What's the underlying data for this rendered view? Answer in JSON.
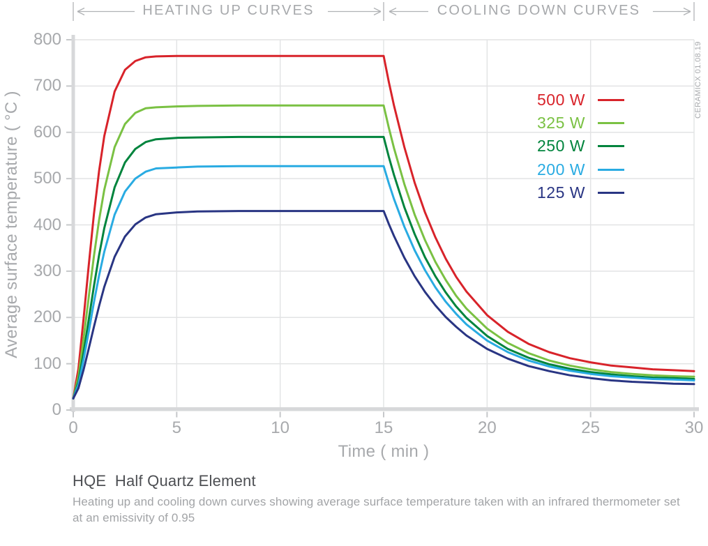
{
  "header": {
    "heating_label": "HEATING UP CURVES",
    "cooling_label": "COOLING DOWN CURVES"
  },
  "watermark": "CERAMICX 01.08.19",
  "footer": {
    "title": "HQE  Half Quartz Element",
    "subtitle_line1": "Heating up and cooling down curves showing average surface temperature taken with an infrared thermometer set",
    "subtitle_line2": "at an emissivity of 0.95"
  },
  "colors": {
    "text_muted": "#a7a9ac",
    "text_dark": "#4d4f53",
    "grid": "#e2e3e4",
    "axis_bar": "#d7d8da",
    "tick": "#c6c8ca",
    "header_line": "#bcbec0",
    "arrow": "#b0b2b5"
  },
  "chart_data": {
    "type": "line",
    "xlabel": "Time ( min )",
    "ylabel": "Average surface temperature ( °C )",
    "xlim": [
      0,
      30
    ],
    "ylim": [
      0,
      800
    ],
    "xticks": [
      0,
      5,
      10,
      15,
      20,
      25,
      30
    ],
    "yticks": [
      0,
      100,
      200,
      300,
      400,
      500,
      600,
      700,
      800
    ],
    "grid": true,
    "legend_position": "upper right",
    "x": [
      0,
      0.25,
      0.5,
      0.75,
      1,
      1.25,
      1.5,
      2,
      2.5,
      3,
      3.5,
      4,
      5,
      6,
      8,
      10,
      12,
      14,
      15,
      15.25,
      15.5,
      16,
      16.5,
      17,
      17.5,
      18,
      18.5,
      19,
      20,
      21,
      22,
      23,
      24,
      25,
      26,
      27,
      28,
      29,
      30
    ],
    "series": [
      {
        "name": "500 W",
        "color": "#d8232a",
        "plateau_c": 765,
        "values": [
          25,
          89,
          197,
          314,
          424,
          517,
          592,
          688,
          735,
          754,
          762,
          764,
          765,
          765,
          765,
          765,
          765,
          765,
          765,
          709,
          658,
          568,
          491,
          427,
          373,
          327,
          288,
          256,
          205,
          169,
          143,
          125,
          112,
          103,
          96,
          92,
          88,
          86,
          84
        ]
      },
      {
        "name": "325 W",
        "color": "#7ac143",
        "plateau_c": 658,
        "values": [
          25,
          72,
          154,
          245,
          333,
          411,
          476,
          568,
          618,
          642,
          652,
          654,
          656,
          657,
          658,
          658,
          658,
          658,
          658,
          610,
          566,
          488,
          422,
          367,
          320,
          281,
          247,
          219,
          176,
          145,
          123,
          107,
          96,
          88,
          82,
          78,
          75,
          73,
          72
        ]
      },
      {
        "name": "250 W",
        "color": "#00843d",
        "plateau_c": 590,
        "values": [
          25,
          61,
          124,
          196,
          268,
          335,
          393,
          481,
          535,
          564,
          579,
          585,
          588,
          589,
          590,
          590,
          590,
          590,
          590,
          547,
          508,
          438,
          380,
          330,
          289,
          254,
          224,
          199,
          160,
          132,
          113,
          99,
          89,
          82,
          77,
          73,
          70,
          69,
          67
        ]
      },
      {
        "name": "200 W",
        "color": "#29abe2",
        "plateau_c": 527,
        "values": [
          25,
          55,
          109,
          170,
          233,
          291,
          342,
          422,
          472,
          500,
          515,
          522,
          524,
          526,
          527,
          527,
          527,
          527,
          527,
          490,
          456,
          396,
          345,
          302,
          265,
          234,
          208,
          185,
          150,
          125,
          107,
          94,
          85,
          78,
          73,
          70,
          67,
          66,
          64
        ]
      },
      {
        "name": "125 W",
        "color": "#293583",
        "plateau_c": 430,
        "values": [
          25,
          47,
          87,
          133,
          180,
          225,
          266,
          331,
          375,
          401,
          416,
          423,
          427,
          429,
          430,
          430,
          430,
          430,
          430,
          402,
          376,
          329,
          289,
          255,
          226,
          201,
          180,
          161,
          132,
          111,
          95,
          84,
          75,
          69,
          64,
          61,
          59,
          57,
          56
        ]
      }
    ]
  }
}
